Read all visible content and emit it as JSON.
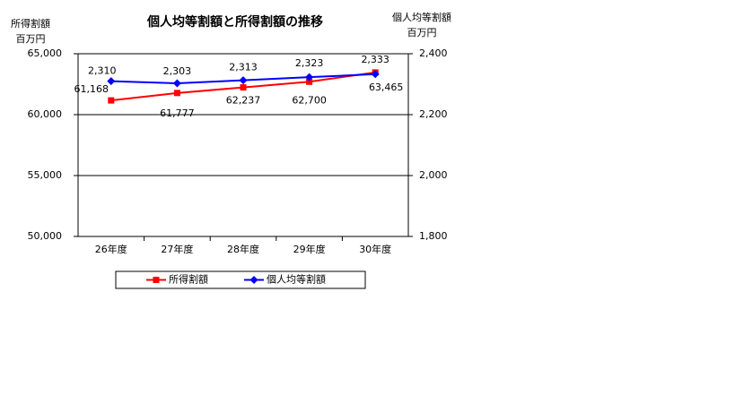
{
  "chart_data": {
    "type": "line",
    "title": "個人均等割額と所得割額の推移",
    "y_label": [
      "所得割額",
      "百万円"
    ],
    "y2_label": [
      "個人均等割額",
      "百万円"
    ],
    "categories": [
      "26年度",
      "27年度",
      "28年度",
      "29年度",
      "30年度"
    ],
    "series": [
      {
        "name": "所得割額",
        "color": "#ff0000",
        "marker": "square",
        "values": [
          61168,
          61777,
          62237,
          62700,
          63465
        ],
        "value_labels": [
          "61,168",
          "61,777",
          "62,237",
          "62,700",
          "63,465"
        ]
      },
      {
        "name": "個人均等割額",
        "color": "#0000ff",
        "marker": "diamond",
        "axis": "y2",
        "values": [
          2310,
          2303,
          2313,
          2323,
          2333
        ],
        "value_labels": [
          "2,310",
          "2,303",
          "2,313",
          "2,323",
          "2,333"
        ]
      }
    ],
    "ylim": [
      50000,
      65000
    ],
    "yticks": [
      {
        "value": 50000,
        "label": "50,000"
      },
      {
        "value": 55000,
        "label": "55,000"
      },
      {
        "value": 60000,
        "label": "60,000"
      },
      {
        "value": 65000,
        "label": "65,000"
      }
    ],
    "y2lim": [
      1800,
      2400
    ],
    "y2ticks": [
      {
        "value": 1800,
        "label": "1,800"
      },
      {
        "value": 2000,
        "label": "2,000"
      },
      {
        "value": 2200,
        "label": "2,200"
      },
      {
        "value": 2400,
        "label": "2,400"
      }
    ],
    "grid": true,
    "legend": "bottom"
  }
}
